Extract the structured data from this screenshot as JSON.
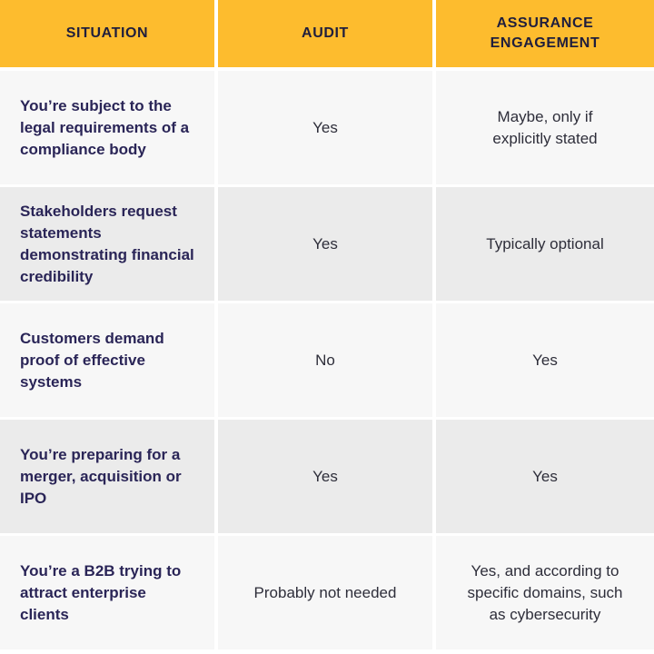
{
  "headers": [
    "SITUATION",
    "AUDIT",
    "ASSURANCE ENGAGEMENT"
  ],
  "rows": [
    {
      "situation": "You’re subject to the legal requirements of a compliance body",
      "audit": "Yes",
      "assurance": "Maybe, only if explicitly stated"
    },
    {
      "situation": "Stakeholders request statements demonstrating financial credibility",
      "audit": "Yes",
      "assurance": "Typically optional"
    },
    {
      "situation": "Customers demand proof of effective systems",
      "audit": "No",
      "assurance": "Yes"
    },
    {
      "situation": "You’re preparing for a merger, acquisition or IPO",
      "audit": "Yes",
      "assurance": "Yes"
    },
    {
      "situation": "You’re a B2B trying to attract enterprise clients",
      "audit": "Probably not needed",
      "assurance": "Yes, and according to specific domains, such as cybersecurity"
    }
  ],
  "colors": {
    "header_bg": "#fdbc2e",
    "row_light": "#f7f7f7",
    "row_dark": "#ebebeb",
    "situation_text": "#2a2557"
  }
}
